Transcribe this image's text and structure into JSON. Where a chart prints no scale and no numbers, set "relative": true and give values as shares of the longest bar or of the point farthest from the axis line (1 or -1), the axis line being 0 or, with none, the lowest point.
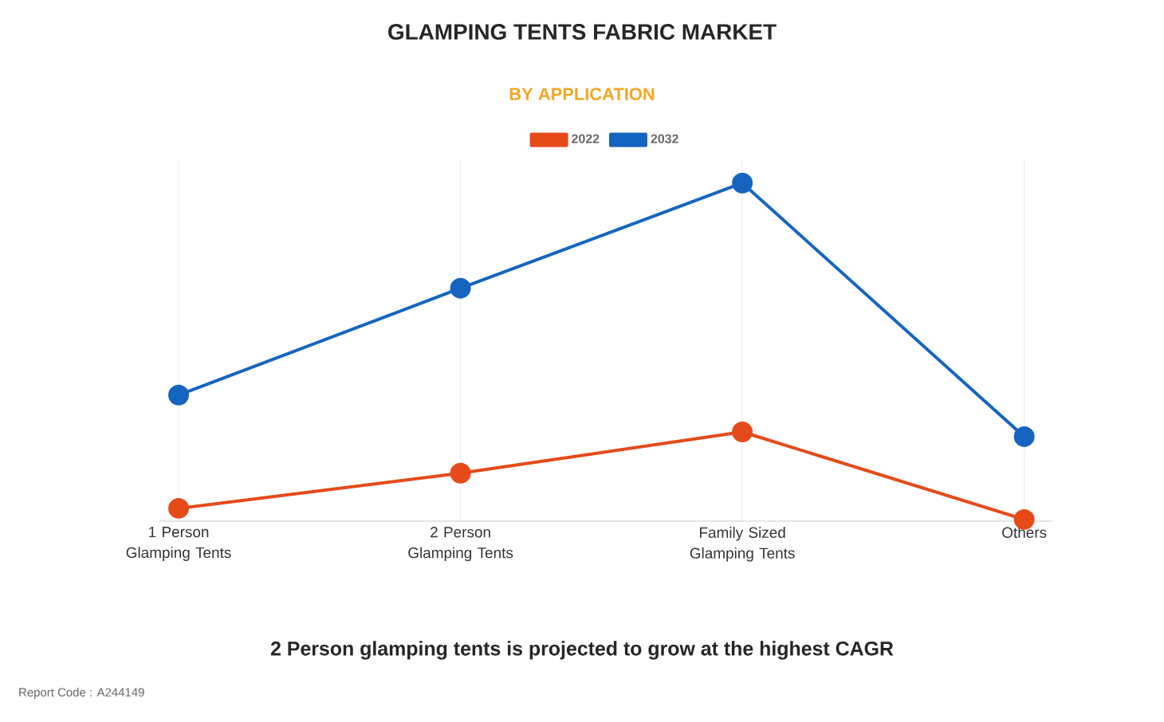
{
  "chart_data": {
    "type": "line",
    "title": "GLAMPING TENTS FABRIC MARKET",
    "subtitle": "BY APPLICATION",
    "categories": [
      "1 Person Glamping Tents",
      "2 Person Glamping Tents",
      "Family Sized Glamping Tents",
      "Others"
    ],
    "relative": true,
    "series": [
      {
        "name": "2022",
        "color": "#e64a19",
        "values": [
          0.038,
          0.142,
          0.264,
          0.005
        ]
      },
      {
        "name": "2032",
        "color": "#1565c0",
        "values": [
          0.373,
          0.689,
          1,
          0.25
        ]
      }
    ],
    "marker": "circle",
    "grid": true,
    "legend": "top",
    "annotations": [
      "2 Person glamping tents is projected to grow at the highest CAGR",
      "Report Code : A244149"
    ]
  }
}
